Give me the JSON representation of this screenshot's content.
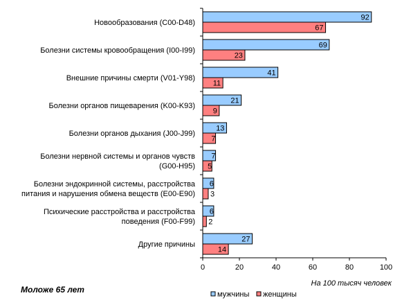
{
  "chart_data": {
    "type": "bar",
    "orientation": "horizontal",
    "categories": [
      [
        "Новообразования (C00-D48)"
      ],
      [
        "Болезни системы кровообращения (I00-I99)"
      ],
      [
        "Внешние причины смерти (V01-Y98)"
      ],
      [
        "Болезни органов пищеварения (K00-K93)"
      ],
      [
        "Болезни органов дыхания (J00-J99)"
      ],
      [
        "Болезни нервной системы и органов чувств",
        "(G00-H95)"
      ],
      [
        "Болезни эндокринной системы, расстройства",
        "питания и нарушения обмена веществ  (E00-E90)"
      ],
      [
        "Психические расстройства и расстройства",
        "поведения (F00-F99)"
      ],
      [
        "Другие  причины"
      ]
    ],
    "series": [
      {
        "name": "мужчины",
        "color": "#99ccff",
        "values": [
          92,
          69,
          41,
          21,
          13,
          7,
          6,
          6,
          27
        ]
      },
      {
        "name": "женщины",
        "color": "#ff8080",
        "values": [
          67,
          23,
          11,
          9,
          7,
          5,
          3,
          2,
          14
        ]
      }
    ],
    "xlim": [
      0,
      100
    ],
    "xticks": [
      0,
      20,
      40,
      60,
      80,
      100
    ],
    "xlabel": "На 100 тысяч человек",
    "subtitle": "Моложе 65 лет",
    "legend_position": "bottom",
    "grid": false,
    "data_labels": true
  }
}
